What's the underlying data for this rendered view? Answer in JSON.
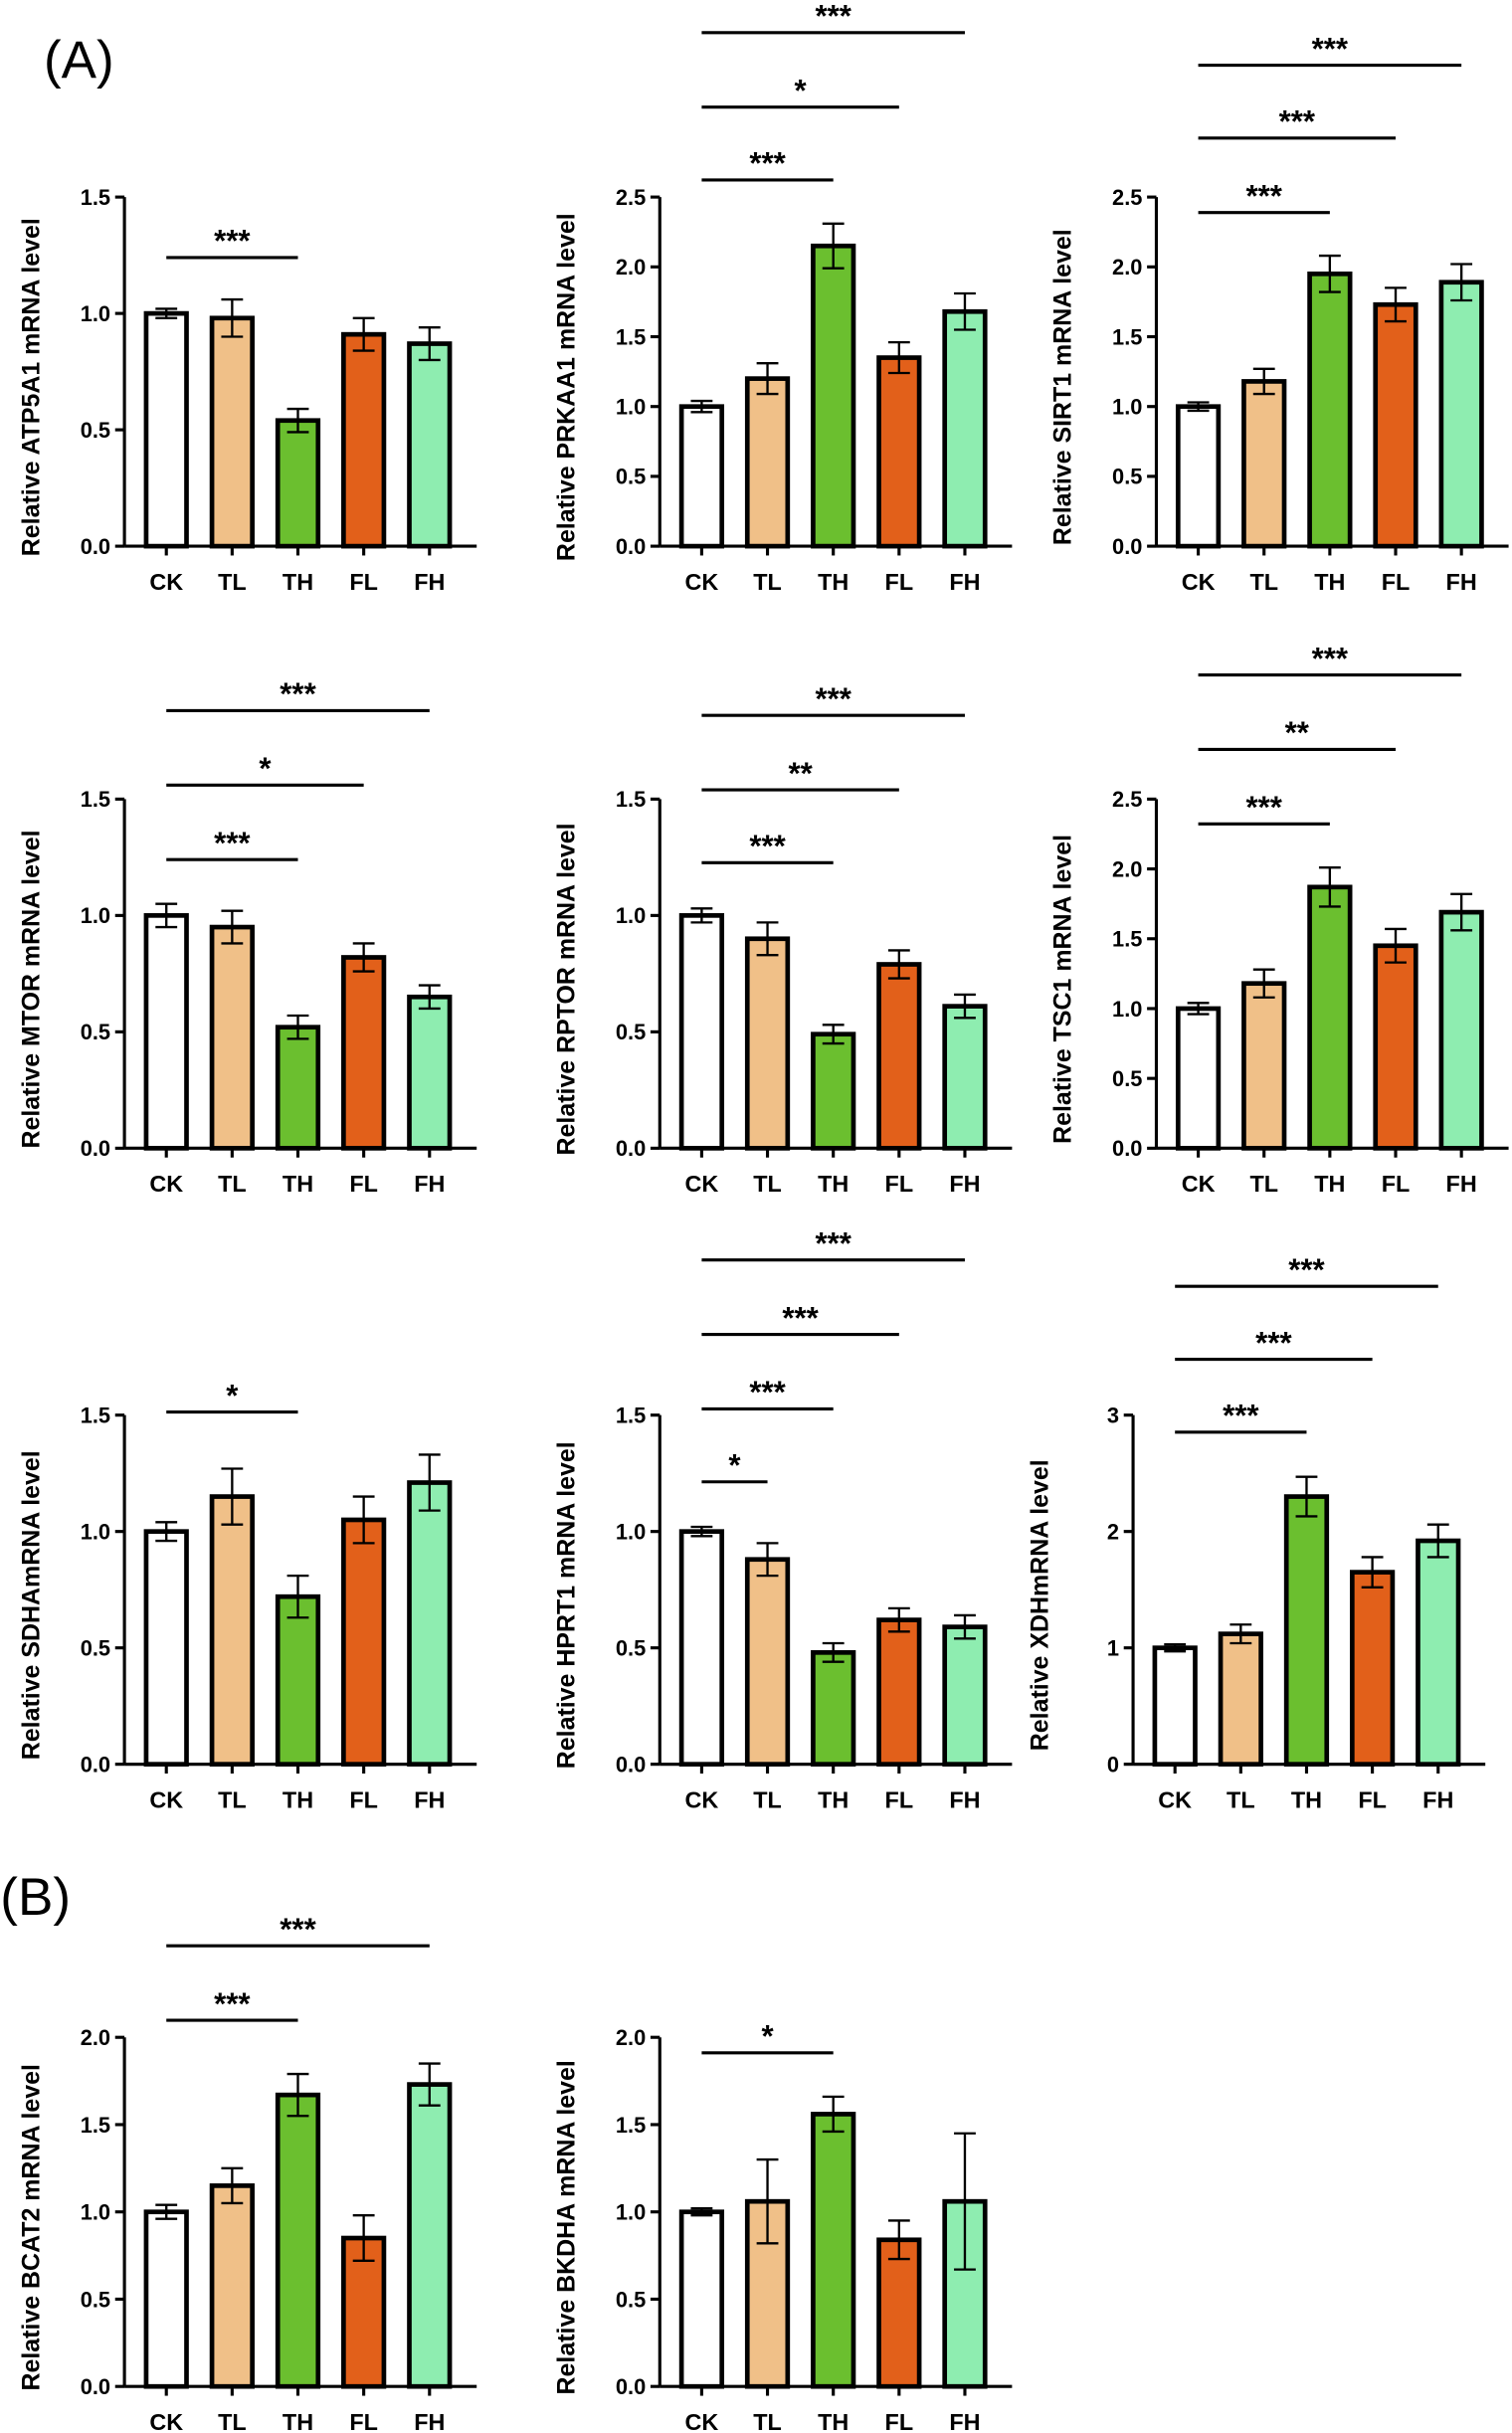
{
  "panels": [
    "(A)",
    "(B)"
  ],
  "colors": {
    "CK": "#FFFFFF",
    "TL": "#F0C088",
    "TH": "#6BBF2F",
    "FL": "#E2601A",
    "FH": "#8EEDB0"
  },
  "chart_data": [
    {
      "type": "bar",
      "panel": "A",
      "title": "",
      "xlabel": "",
      "ylabel": "Relative ATP5A1 mRNA  level",
      "categories": [
        "CK",
        "TL",
        "TH",
        "FL",
        "FH"
      ],
      "values": [
        1.0,
        0.98,
        0.54,
        0.91,
        0.87
      ],
      "errors": [
        0.02,
        0.08,
        0.05,
        0.07,
        0.07
      ],
      "ylim": [
        0,
        1.5
      ],
      "yticks": [
        "0.0",
        "0.5",
        "1.0",
        "1.5"
      ],
      "significance": [
        {
          "from": "CK",
          "to": "TH",
          "label": "***"
        }
      ]
    },
    {
      "type": "bar",
      "panel": "A",
      "title": "",
      "xlabel": "",
      "ylabel": "Relative PRKAA1 mRNA  level",
      "categories": [
        "CK",
        "TL",
        "TH",
        "FL",
        "FH"
      ],
      "values": [
        1.0,
        1.2,
        2.15,
        1.35,
        1.68
      ],
      "errors": [
        0.04,
        0.11,
        0.16,
        0.11,
        0.13
      ],
      "ylim": [
        0,
        2.5
      ],
      "yticks": [
        "0.0",
        "0.5",
        "1.0",
        "1.5",
        "2.0",
        "2.5"
      ],
      "significance": [
        {
          "from": "CK",
          "to": "TH",
          "label": "***"
        },
        {
          "from": "CK",
          "to": "FL",
          "label": "*"
        },
        {
          "from": "CK",
          "to": "FH",
          "label": "***"
        }
      ]
    },
    {
      "type": "bar",
      "panel": "A",
      "title": "",
      "xlabel": "",
      "ylabel": "Relative SIRT1 mRNA  level",
      "categories": [
        "CK",
        "TL",
        "TH",
        "FL",
        "FH"
      ],
      "values": [
        1.0,
        1.18,
        1.95,
        1.73,
        1.89
      ],
      "errors": [
        0.03,
        0.09,
        0.13,
        0.12,
        0.13
      ],
      "ylim": [
        0,
        2.5
      ],
      "yticks": [
        "0.0",
        "0.5",
        "1.0",
        "1.5",
        "2.0",
        "2.5"
      ],
      "significance": [
        {
          "from": "CK",
          "to": "TH",
          "label": "***"
        },
        {
          "from": "CK",
          "to": "FL",
          "label": "***"
        },
        {
          "from": "CK",
          "to": "FH",
          "label": "***"
        }
      ]
    },
    {
      "type": "bar",
      "panel": "A",
      "title": "",
      "xlabel": "",
      "ylabel": "Relative MTOR mRNA  level",
      "categories": [
        "CK",
        "TL",
        "TH",
        "FL",
        "FH"
      ],
      "values": [
        1.0,
        0.95,
        0.52,
        0.82,
        0.65
      ],
      "errors": [
        0.05,
        0.07,
        0.05,
        0.06,
        0.05
      ],
      "ylim": [
        0,
        1.5
      ],
      "yticks": [
        "0.0",
        "0.5",
        "1.0",
        "1.5"
      ],
      "significance": [
        {
          "from": "CK",
          "to": "TH",
          "label": "***"
        },
        {
          "from": "CK",
          "to": "FL",
          "label": "*"
        },
        {
          "from": "CK",
          "to": "FH",
          "label": "***"
        }
      ]
    },
    {
      "type": "bar",
      "panel": "A",
      "title": "",
      "xlabel": "",
      "ylabel": "Relative RPTOR mRNA  level",
      "categories": [
        "CK",
        "TL",
        "TH",
        "FL",
        "FH"
      ],
      "values": [
        1.0,
        0.9,
        0.49,
        0.79,
        0.61
      ],
      "errors": [
        0.03,
        0.07,
        0.04,
        0.06,
        0.05
      ],
      "ylim": [
        0,
        1.5
      ],
      "yticks": [
        "0.0",
        "0.5",
        "1.0",
        "1.5"
      ],
      "significance": [
        {
          "from": "CK",
          "to": "TH",
          "label": "***"
        },
        {
          "from": "CK",
          "to": "FL",
          "label": "**"
        },
        {
          "from": "CK",
          "to": "FH",
          "label": "***"
        }
      ]
    },
    {
      "type": "bar",
      "panel": "A",
      "title": "",
      "xlabel": "",
      "ylabel": "Relative TSC1 mRNA  level",
      "categories": [
        "CK",
        "TL",
        "TH",
        "FL",
        "FH"
      ],
      "values": [
        1.0,
        1.18,
        1.87,
        1.45,
        1.69
      ],
      "errors": [
        0.04,
        0.1,
        0.14,
        0.12,
        0.13
      ],
      "ylim": [
        0,
        2.5
      ],
      "yticks": [
        "0.0",
        "0.5",
        "1.0",
        "1.5",
        "2.0",
        "2.5"
      ],
      "significance": [
        {
          "from": "CK",
          "to": "TH",
          "label": "***"
        },
        {
          "from": "CK",
          "to": "FL",
          "label": "**"
        },
        {
          "from": "CK",
          "to": "FH",
          "label": "***"
        }
      ]
    },
    {
      "type": "bar",
      "panel": "A",
      "title": "",
      "xlabel": "",
      "ylabel": "Relative SDHAmRNA  level",
      "categories": [
        "CK",
        "TL",
        "TH",
        "FL",
        "FH"
      ],
      "values": [
        1.0,
        1.15,
        0.72,
        1.05,
        1.21
      ],
      "errors": [
        0.04,
        0.12,
        0.09,
        0.1,
        0.12
      ],
      "ylim": [
        0,
        1.5
      ],
      "yticks": [
        "0.0",
        "0.5",
        "1.0",
        "1.5"
      ],
      "significance": [
        {
          "from": "CK",
          "to": "TH",
          "label": "*"
        }
      ]
    },
    {
      "type": "bar",
      "panel": "A",
      "title": "",
      "xlabel": "",
      "ylabel": "Relative HPRT1 mRNA  level",
      "categories": [
        "CK",
        "TL",
        "TH",
        "FL",
        "FH"
      ],
      "values": [
        1.0,
        0.88,
        0.48,
        0.62,
        0.59
      ],
      "errors": [
        0.02,
        0.07,
        0.04,
        0.05,
        0.05
      ],
      "ylim": [
        0,
        1.5
      ],
      "yticks": [
        "0.0",
        "0.5",
        "1.0",
        "1.5"
      ],
      "significance": [
        {
          "from": "CK",
          "to": "TL",
          "label": "*"
        },
        {
          "from": "CK",
          "to": "TH",
          "label": "***"
        },
        {
          "from": "CK",
          "to": "FL",
          "label": "***"
        },
        {
          "from": "CK",
          "to": "FH",
          "label": "***"
        }
      ]
    },
    {
      "type": "bar",
      "panel": "A",
      "title": "",
      "xlabel": "",
      "ylabel": "Relative XDHmRNA  level",
      "categories": [
        "CK",
        "TL",
        "TH",
        "FL",
        "FH"
      ],
      "values": [
        1.0,
        1.12,
        2.3,
        1.65,
        1.92
      ],
      "errors": [
        0.03,
        0.08,
        0.17,
        0.13,
        0.14
      ],
      "ylim": [
        0,
        3
      ],
      "yticks": [
        "0",
        "1",
        "2",
        "3"
      ],
      "significance": [
        {
          "from": "CK",
          "to": "TH",
          "label": "***"
        },
        {
          "from": "CK",
          "to": "FL",
          "label": "***"
        },
        {
          "from": "CK",
          "to": "FH",
          "label": "***"
        }
      ]
    },
    {
      "type": "bar",
      "panel": "B",
      "title": "",
      "xlabel": "",
      "ylabel": "Relative BCAT2 mRNA  level",
      "categories": [
        "CK",
        "TL",
        "TH",
        "FL",
        "FH"
      ],
      "values": [
        1.0,
        1.15,
        1.67,
        0.85,
        1.73
      ],
      "errors": [
        0.04,
        0.1,
        0.12,
        0.13,
        0.12
      ],
      "ylim": [
        0,
        2.0
      ],
      "yticks": [
        "0.0",
        "0.5",
        "1.0",
        "1.5",
        "2.0"
      ],
      "significance": [
        {
          "from": "CK",
          "to": "TH",
          "label": "***"
        },
        {
          "from": "CK",
          "to": "FH",
          "label": "***"
        }
      ]
    },
    {
      "type": "bar",
      "panel": "B",
      "title": "",
      "xlabel": "",
      "ylabel": "Relative BKDHA mRNA  level",
      "categories": [
        "CK",
        "TL",
        "TH",
        "FL",
        "FH"
      ],
      "values": [
        1.0,
        1.06,
        1.56,
        0.84,
        1.06
      ],
      "errors": [
        0.02,
        0.24,
        0.1,
        0.11,
        0.39
      ],
      "ylim": [
        0,
        2.0
      ],
      "yticks": [
        "0.0",
        "0.5",
        "1.0",
        "1.5",
        "2.0"
      ],
      "significance": [
        {
          "from": "CK",
          "to": "TH",
          "label": "*"
        }
      ]
    }
  ]
}
